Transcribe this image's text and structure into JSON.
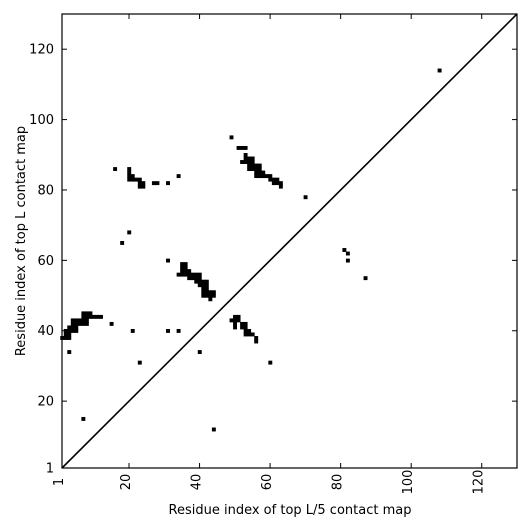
{
  "chart_data": {
    "type": "heatmap",
    "xlabel": "Residue index of top L/5 contact map",
    "ylabel": "Residue index of top L contact map",
    "xlim": [
      1,
      130
    ],
    "ylim": [
      1,
      130
    ],
    "xticks": [
      {
        "value": 1,
        "label": "1"
      },
      {
        "value": 20,
        "label": "20"
      },
      {
        "value": 40,
        "label": "40"
      },
      {
        "value": 60,
        "label": "60"
      },
      {
        "value": 80,
        "label": "80"
      },
      {
        "value": 100,
        "label": "100"
      },
      {
        "value": 120,
        "label": "120"
      }
    ],
    "yticks": [
      {
        "value": 1,
        "label": "1"
      },
      {
        "value": 20,
        "label": "20"
      },
      {
        "value": 40,
        "label": "40"
      },
      {
        "value": 60,
        "label": "60"
      },
      {
        "value": 80,
        "label": "80"
      },
      {
        "value": 100,
        "label": "100"
      },
      {
        "value": 120,
        "label": "120"
      }
    ],
    "diagonal": [
      [
        1,
        1
      ],
      [
        130,
        130
      ]
    ],
    "colors": {
      "contact": "#000000",
      "background": "#ffffff"
    },
    "contacts": [
      [
        1,
        38
      ],
      [
        2,
        38
      ],
      [
        2,
        39
      ],
      [
        2,
        40
      ],
      [
        3,
        38
      ],
      [
        3,
        39
      ],
      [
        3,
        40
      ],
      [
        3,
        41
      ],
      [
        3,
        34
      ],
      [
        4,
        40
      ],
      [
        4,
        41
      ],
      [
        4,
        42
      ],
      [
        4,
        43
      ],
      [
        5,
        40
      ],
      [
        5,
        41
      ],
      [
        5,
        42
      ],
      [
        5,
        43
      ],
      [
        6,
        42
      ],
      [
        6,
        43
      ],
      [
        7,
        42
      ],
      [
        7,
        43
      ],
      [
        7,
        44
      ],
      [
        7,
        45
      ],
      [
        8,
        42
      ],
      [
        8,
        43
      ],
      [
        8,
        44
      ],
      [
        8,
        45
      ],
      [
        9,
        44
      ],
      [
        9,
        45
      ],
      [
        10,
        44
      ],
      [
        11,
        44
      ],
      [
        12,
        44
      ],
      [
        15,
        42
      ],
      [
        7,
        15
      ],
      [
        16,
        86
      ],
      [
        18,
        65
      ],
      [
        20,
        68
      ],
      [
        20,
        86
      ],
      [
        20,
        85
      ],
      [
        20,
        84
      ],
      [
        20,
        83
      ],
      [
        21,
        84
      ],
      [
        21,
        83
      ],
      [
        22,
        83
      ],
      [
        23,
        83
      ],
      [
        23,
        82
      ],
      [
        23,
        81
      ],
      [
        24,
        82
      ],
      [
        24,
        81
      ],
      [
        27,
        82
      ],
      [
        28,
        82
      ],
      [
        31,
        82
      ],
      [
        34,
        84
      ],
      [
        21,
        40
      ],
      [
        23,
        31
      ],
      [
        31,
        60
      ],
      [
        31,
        40
      ],
      [
        34,
        40
      ],
      [
        34,
        56
      ],
      [
        35,
        56
      ],
      [
        35,
        57
      ],
      [
        35,
        58
      ],
      [
        35,
        59
      ],
      [
        36,
        56
      ],
      [
        36,
        57
      ],
      [
        36,
        58
      ],
      [
        36,
        59
      ],
      [
        37,
        55
      ],
      [
        37,
        56
      ],
      [
        37,
        57
      ],
      [
        38,
        55
      ],
      [
        38,
        56
      ],
      [
        39,
        54
      ],
      [
        39,
        55
      ],
      [
        39,
        56
      ],
      [
        40,
        53
      ],
      [
        40,
        54
      ],
      [
        40,
        55
      ],
      [
        40,
        56
      ],
      [
        41,
        50
      ],
      [
        41,
        51
      ],
      [
        41,
        52
      ],
      [
        41,
        53
      ],
      [
        41,
        54
      ],
      [
        42,
        50
      ],
      [
        42,
        51
      ],
      [
        42,
        52
      ],
      [
        42,
        53
      ],
      [
        42,
        54
      ],
      [
        43,
        49
      ],
      [
        43,
        50
      ],
      [
        43,
        51
      ],
      [
        44,
        50
      ],
      [
        44,
        51
      ],
      [
        40,
        34
      ],
      [
        44,
        12
      ],
      [
        49,
        43
      ],
      [
        49,
        95
      ],
      [
        50,
        42
      ],
      [
        50,
        43
      ],
      [
        50,
        44
      ],
      [
        50,
        41
      ],
      [
        51,
        43
      ],
      [
        51,
        44
      ],
      [
        51,
        92
      ],
      [
        52,
        41
      ],
      [
        52,
        42
      ],
      [
        52,
        88
      ],
      [
        52,
        92
      ],
      [
        53,
        39
      ],
      [
        53,
        40
      ],
      [
        53,
        41
      ],
      [
        53,
        42
      ],
      [
        53,
        88
      ],
      [
        53,
        89
      ],
      [
        53,
        90
      ],
      [
        53,
        92
      ],
      [
        54,
        39
      ],
      [
        54,
        40
      ],
      [
        54,
        86
      ],
      [
        54,
        87
      ],
      [
        54,
        88
      ],
      [
        54,
        89
      ],
      [
        55,
        39
      ],
      [
        55,
        86
      ],
      [
        55,
        87
      ],
      [
        55,
        88
      ],
      [
        55,
        89
      ],
      [
        56,
        37
      ],
      [
        56,
        38
      ],
      [
        56,
        84
      ],
      [
        56,
        85
      ],
      [
        56,
        86
      ],
      [
        56,
        87
      ],
      [
        57,
        84
      ],
      [
        57,
        85
      ],
      [
        57,
        86
      ],
      [
        57,
        87
      ],
      [
        58,
        84
      ],
      [
        58,
        85
      ],
      [
        59,
        84
      ],
      [
        60,
        31
      ],
      [
        60,
        83
      ],
      [
        60,
        84
      ],
      [
        61,
        82
      ],
      [
        61,
        83
      ],
      [
        62,
        82
      ],
      [
        62,
        83
      ],
      [
        63,
        81
      ],
      [
        63,
        82
      ],
      [
        70,
        78
      ],
      [
        81,
        63
      ],
      [
        82,
        62
      ],
      [
        82,
        60
      ],
      [
        87,
        55
      ],
      [
        108,
        114
      ]
    ]
  }
}
